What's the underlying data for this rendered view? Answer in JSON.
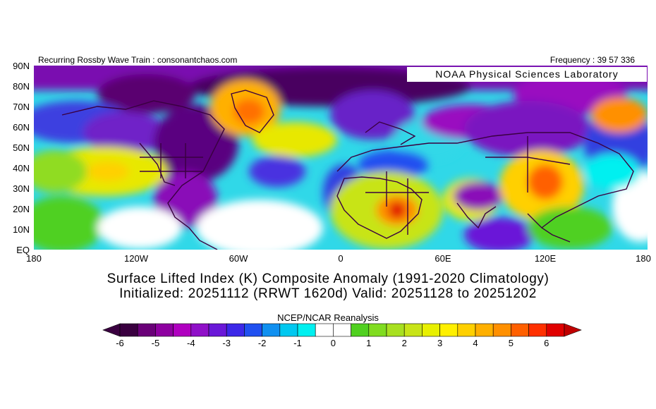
{
  "header": {
    "left": "Recurring Rossby Wave Train : consonantchaos.com",
    "right": "Frequency : 39 57 336"
  },
  "credit": "NOAA Physical Sciences Laboratory",
  "lat_labels": [
    "90N",
    "80N",
    "70N",
    "60N",
    "50N",
    "40N",
    "30N",
    "20N",
    "10N",
    "EQ"
  ],
  "lon_labels": [
    "180",
    "120W",
    "60W",
    "0",
    "60E",
    "120E",
    "180"
  ],
  "title": {
    "line1": "Surface Lifted Index (K) Composite Anomaly (1991-2020 Climatology)",
    "line2": "Initialized: 20251112 (RRWT 1620d) Valid: 20251128 to 20251202"
  },
  "colorbar": {
    "title": "NCEP/NCAR Reanalysis",
    "ticks": [
      "-6",
      "-5",
      "-4",
      "-3",
      "-2",
      "-1",
      "0",
      "1",
      "2",
      "3",
      "4",
      "5",
      "6"
    ],
    "colors": [
      "#3a0040",
      "#6a0078",
      "#8e00a0",
      "#b000c0",
      "#9010c8",
      "#6a18d8",
      "#3c28e8",
      "#2050f0",
      "#1090f0",
      "#00c8f0",
      "#00f0f0",
      "#ffffff",
      "#ffffff",
      "#50d020",
      "#80dc20",
      "#a8e020",
      "#c8e418",
      "#e8f000",
      "#fff000",
      "#ffd000",
      "#ffb000",
      "#ff9000",
      "#ff6000",
      "#ff3000",
      "#e00000"
    ]
  }
}
